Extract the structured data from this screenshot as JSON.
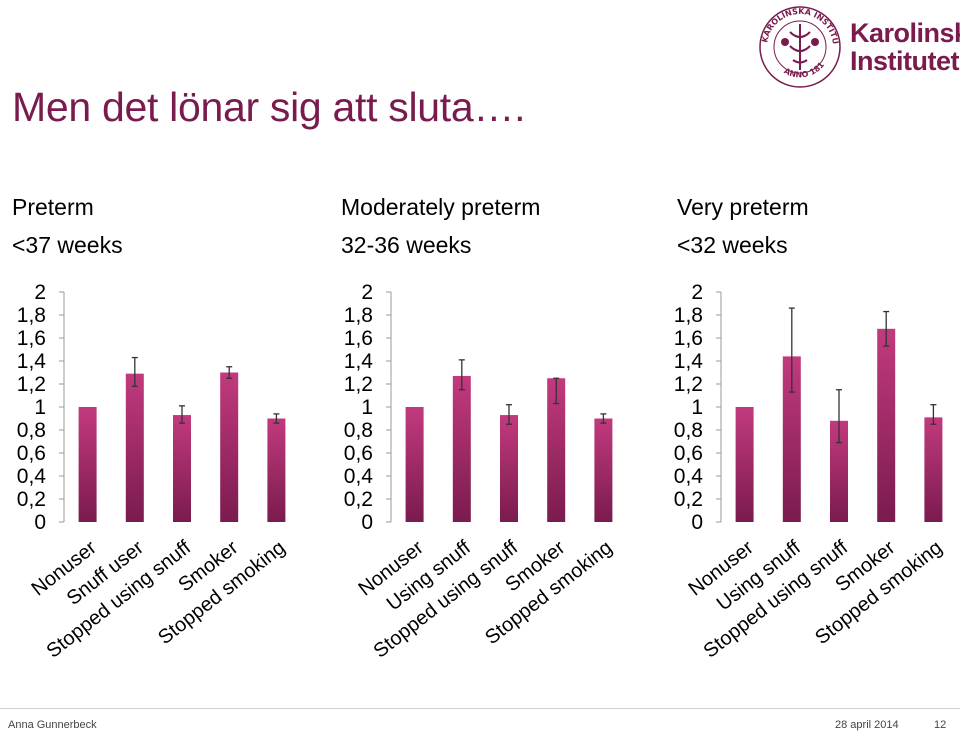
{
  "slide": {
    "title": "Men det lönar sig att sluta…."
  },
  "logo": {
    "seal_text": "KAROLINSKA INSTITUTET ANNO 1810",
    "line1": "Karolinska",
    "line2": "Institutet"
  },
  "footer": {
    "author": "Anna Gunnerbeck",
    "date": "28 april 2014",
    "page": "12"
  },
  "colors": {
    "bar_top": "#c23a7e",
    "bar_bottom": "#7a1b4e",
    "title": "#7a1b4e"
  },
  "chart_data": [
    {
      "type": "bar",
      "title": "Preterm",
      "subtitle": "<37 weeks",
      "categories": [
        "Nonuser",
        "Snuff user",
        "Stopped using snuff",
        "Smoker",
        "Stopped smoking"
      ],
      "values": [
        1.0,
        1.29,
        0.93,
        1.3,
        0.9
      ],
      "error_low": [
        1.0,
        1.18,
        0.86,
        1.25,
        0.86
      ],
      "error_high": [
        1.0,
        1.43,
        1.01,
        1.35,
        0.94
      ],
      "yticks": [
        "0",
        "0,2",
        "0,4",
        "0,6",
        "0,8",
        "1",
        "1,2",
        "1,4",
        "1,6",
        "1,8",
        "2"
      ],
      "ylim": [
        0,
        2
      ]
    },
    {
      "type": "bar",
      "title": "Moderately preterm",
      "subtitle": "32-36 weeks",
      "categories": [
        "Nonuser",
        "Using snuff",
        "Stopped using snuff",
        "Smoker",
        "Stopped smoking"
      ],
      "values": [
        1.0,
        1.27,
        0.93,
        1.25,
        0.9
      ],
      "error_low": [
        1.0,
        1.15,
        0.85,
        1.03,
        0.86
      ],
      "error_high": [
        1.0,
        1.41,
        1.02,
        1.25,
        0.94
      ],
      "yticks": [
        "0",
        "0,2",
        "0,4",
        "0,6",
        "0,8",
        "1",
        "1,2",
        "1,4",
        "1,6",
        "1,8",
        "2"
      ],
      "ylim": [
        0,
        2
      ]
    },
    {
      "type": "bar",
      "title": "Very preterm",
      "subtitle": "<32 weeks",
      "categories": [
        "Nonuser",
        "Using snuff",
        "Stopped using snuff",
        "Smoker",
        "Stopped smoking"
      ],
      "values": [
        1.0,
        1.44,
        0.88,
        1.68,
        0.91
      ],
      "error_low": [
        1.0,
        1.13,
        0.69,
        1.53,
        0.85
      ],
      "error_high": [
        1.0,
        1.86,
        1.15,
        1.83,
        1.02
      ],
      "yticks": [
        "0",
        "0,2",
        "0,4",
        "0,6",
        "0,8",
        "1",
        "1,2",
        "1,4",
        "1,6",
        "1,8",
        "2"
      ],
      "ylim": [
        0,
        2
      ]
    }
  ]
}
